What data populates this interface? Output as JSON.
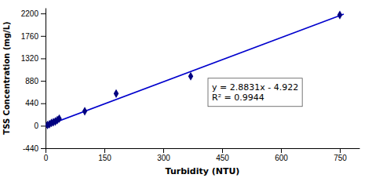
{
  "chart_data": {
    "type": "scatter",
    "xlabel": "Turbidity (NTU)",
    "ylabel": "TSS Concentration (mg/L)",
    "series": [
      {
        "type": "scatter",
        "color": "#000080",
        "marker": "diamond",
        "x": [
          5,
          10,
          15,
          20,
          25,
          30,
          35,
          100,
          180,
          370,
          750
        ],
        "values": [
          15,
          30,
          55,
          70,
          85,
          110,
          140,
          285,
          630,
          970,
          2170
        ]
      },
      {
        "type": "line",
        "color": "#0000CD",
        "line_style": "solid",
        "x": [
          0,
          760
        ],
        "values": [
          -4.922,
          2186.234
        ]
      }
    ],
    "annotation": [
      "y = 2.8831x - 4.922",
      "R² = 0.9944"
    ],
    "xlim": [
      0,
      800
    ],
    "xticks": [
      0,
      150,
      300,
      450,
      600,
      750
    ],
    "ylim": [
      -440,
      2310
    ],
    "yticks": [
      -440,
      0,
      440,
      880,
      1320,
      1760,
      2200
    ],
    "grid": false
  }
}
